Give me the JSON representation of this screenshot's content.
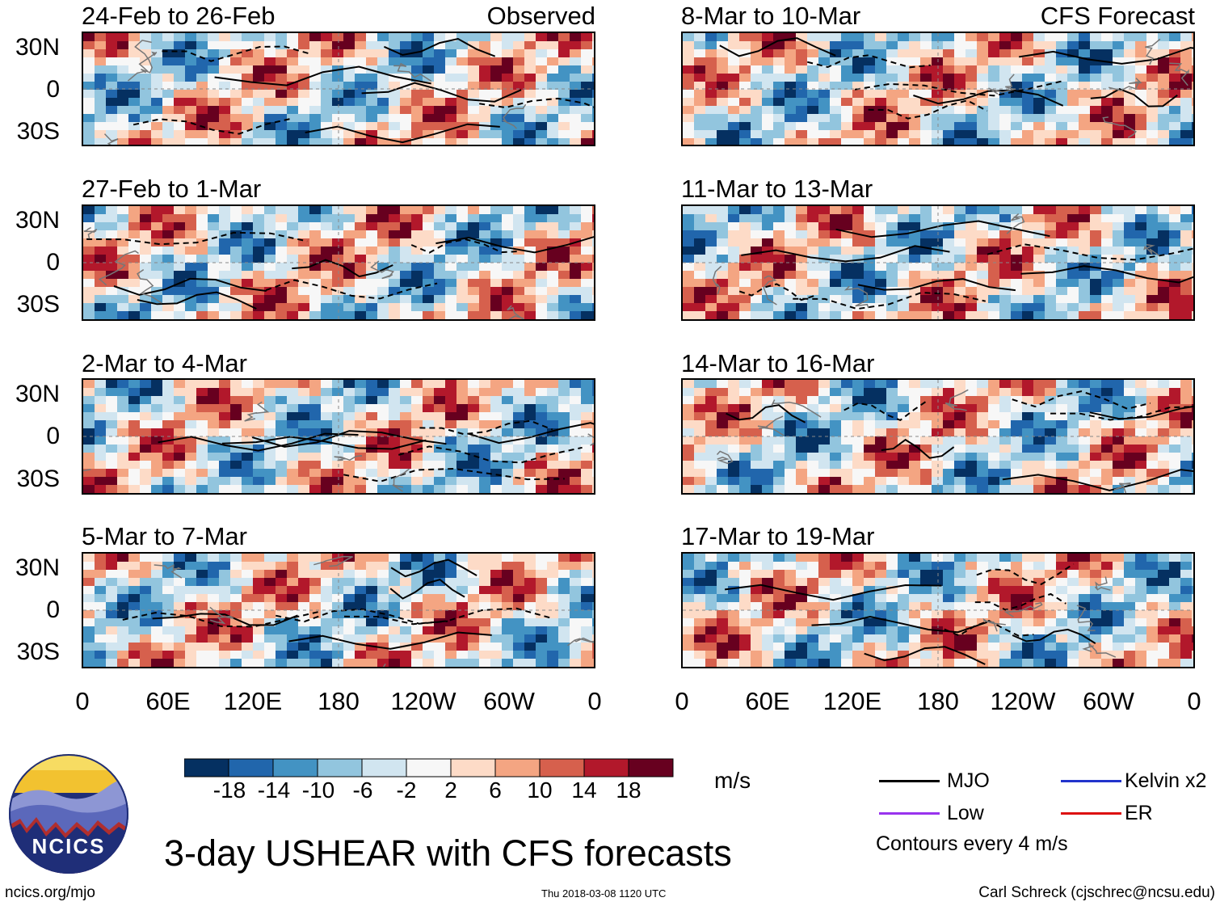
{
  "panels": [
    {
      "title": "24-Feb to 26-Feb",
      "tag": "Observed",
      "mode": "obs",
      "seed": 3
    },
    {
      "title": "8-Mar to 10-Mar",
      "tag": "CFS Forecast",
      "mode": "fcst",
      "seed": 11
    },
    {
      "title": "27-Feb to 1-Mar",
      "tag": "",
      "mode": "obs",
      "seed": 5
    },
    {
      "title": "11-Mar to 13-Mar",
      "tag": "",
      "mode": "fcst",
      "seed": 13
    },
    {
      "title": "2-Mar to 4-Mar",
      "tag": "",
      "mode": "obs",
      "seed": 7
    },
    {
      "title": "14-Mar to 16-Mar",
      "tag": "",
      "mode": "fcst",
      "seed": 17
    },
    {
      "title": "5-Mar to 7-Mar",
      "tag": "",
      "mode": "obs",
      "seed": 9
    },
    {
      "title": "17-Mar to 19-Mar",
      "tag": "",
      "mode": "fcst",
      "seed": 19
    }
  ],
  "lat_labels": [
    "30N",
    "0",
    "30S"
  ],
  "lon_labels": [
    "0",
    "60E",
    "120E",
    "180",
    "120W",
    "60W",
    "0"
  ],
  "colorbar": {
    "colors": [
      "#053061",
      "#2166ac",
      "#4393c3",
      "#92c5de",
      "#d1e5f0",
      "#f7f7f7",
      "#fddbc7",
      "#f4a582",
      "#d6604d",
      "#b2182b",
      "#67001f"
    ],
    "tick_labels": [
      "-18",
      "-14",
      "-10",
      "-6",
      "-2",
      "2",
      "6",
      "10",
      "14",
      "18"
    ],
    "units": "m/s"
  },
  "legend": {
    "items": [
      {
        "label": "MJO",
        "color": "#000000"
      },
      {
        "label": "Kelvin x2",
        "color": "#2233cc"
      },
      {
        "label": "Low",
        "color": "#9933ee"
      },
      {
        "label": "ER",
        "color": "#dd1111"
      }
    ],
    "note": "Contours every 4 m/s"
  },
  "main_title": "3-day USHEAR with CFS forecasts",
  "logo_text": "NCICS",
  "footer": {
    "url": "ncics.org/mjo",
    "timestamp": "Thu 2018-03-08 1120 UTC",
    "author": "Carl Schreck (cjschrec@ncsu.edu)"
  }
}
